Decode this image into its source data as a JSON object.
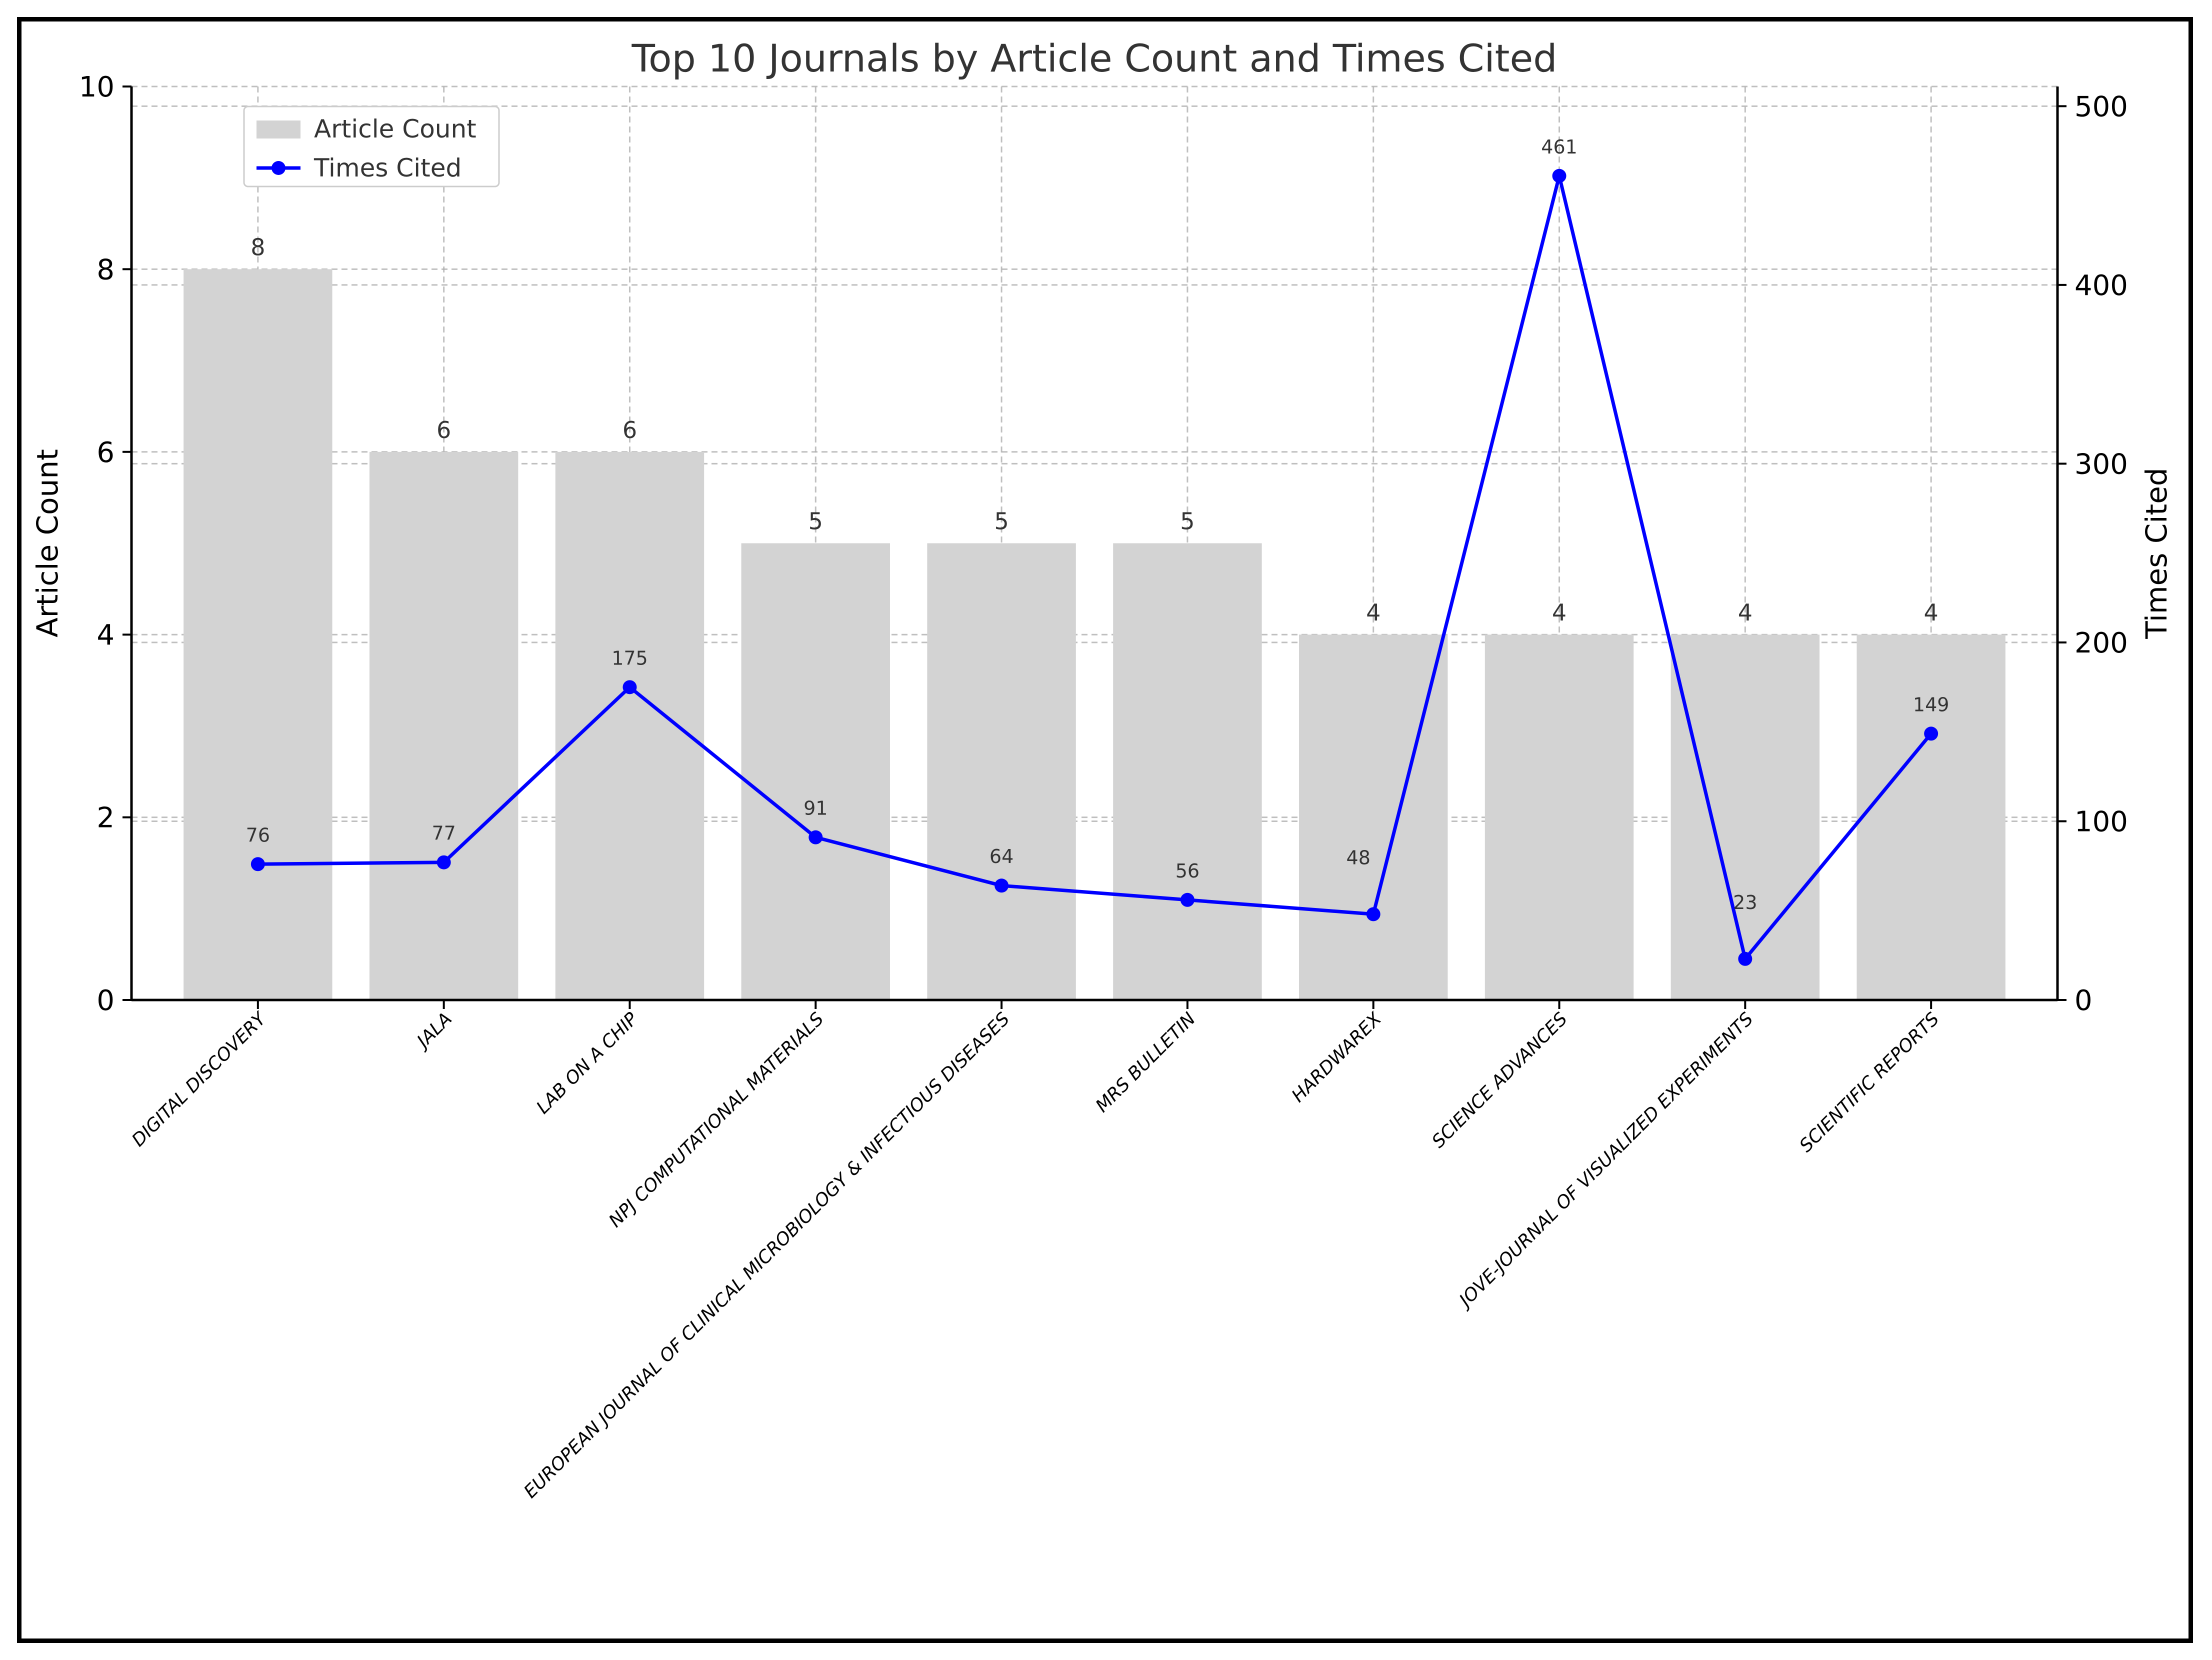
{
  "chart_data": {
    "type": "bar",
    "title": "Top 10 Journals by Article Count and Times Cited",
    "xlabel": "",
    "ylabel": "Article Count",
    "y2label": "Times Cited",
    "categories": [
      "DIGITAL DISCOVERY",
      "JALA",
      "LAB ON A CHIP",
      "NPJ COMPUTATIONAL MATERIALS",
      "EUROPEAN JOURNAL OF CLINICAL MICROBIOLOGY & INFECTIOUS DISEASES",
      "MRS BULLETIN",
      "HARDWAREX",
      "SCIENCE ADVANCES",
      "JOVE-JOURNAL OF VISUALIZED EXPERIMENTS",
      "SCIENTIFIC REPORTS"
    ],
    "series": [
      {
        "name": "Article Count",
        "type": "bar",
        "axis": "left",
        "color": "#d3d3d3",
        "values": [
          8,
          6,
          6,
          5,
          5,
          5,
          4,
          4,
          4,
          4
        ]
      },
      {
        "name": "Times Cited",
        "type": "line",
        "axis": "right",
        "color": "#0000ff",
        "values": [
          76,
          77,
          175,
          91,
          64,
          56,
          48,
          461,
          23,
          149
        ]
      }
    ],
    "ylim": [
      0,
      10
    ],
    "y2lim": [
      0,
      511
    ],
    "yticks": [
      0,
      2,
      4,
      6,
      8,
      10
    ],
    "y2ticks": [
      0,
      100,
      200,
      300,
      400,
      500
    ],
    "grid": true,
    "legend": "top-left"
  }
}
